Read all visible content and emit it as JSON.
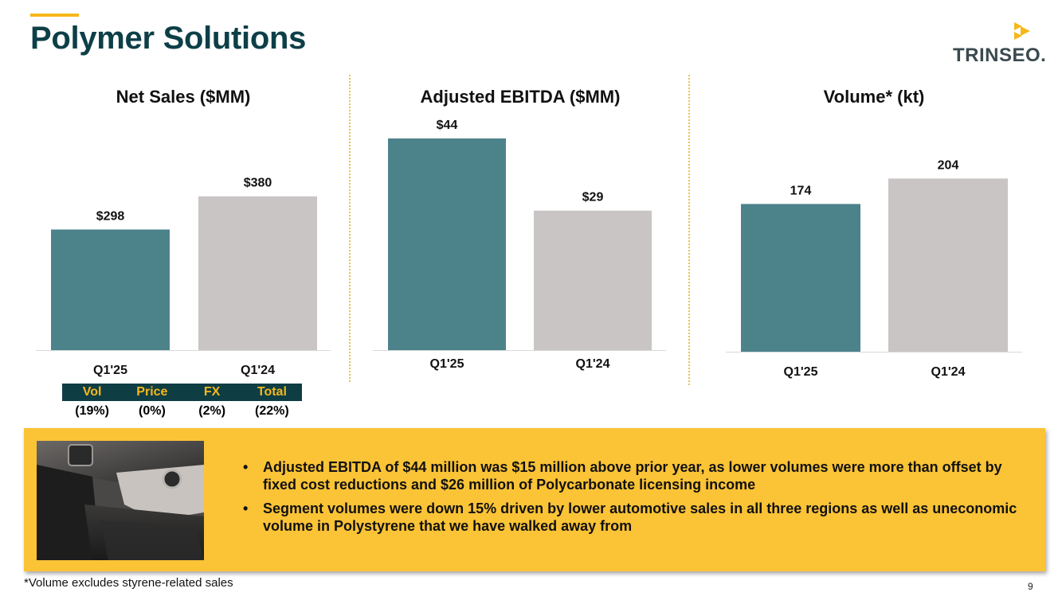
{
  "title": "Polymer Solutions",
  "logo": {
    "text": "TRINSEO."
  },
  "colors": {
    "teal": "#4c838b",
    "grey": "#c9c5c4",
    "gold": "#f5b819",
    "navy": "#0d3f47",
    "banner": "#fbc336"
  },
  "chart_data": [
    {
      "type": "bar",
      "title": "Net Sales ($MM)",
      "categories": [
        "Q1'25",
        "Q1'24"
      ],
      "values": [
        298,
        380
      ],
      "value_labels": [
        "$298",
        "$380"
      ],
      "ylim": [
        0,
        525
      ],
      "bar_colors": [
        "#4c838b",
        "#c9c5c4"
      ],
      "grid": false
    },
    {
      "type": "bar",
      "title": "Adjusted EBITDA ($MM)",
      "categories": [
        "Q1'25",
        "Q1'24"
      ],
      "values": [
        44,
        29
      ],
      "value_labels": [
        "$44",
        "$29"
      ],
      "ylim": [
        0,
        44
      ],
      "bar_colors": [
        "#4c838b",
        "#c9c5c4"
      ],
      "grid": false
    },
    {
      "type": "bar",
      "title": "Volume* (kt)",
      "categories": [
        "Q1'25",
        "Q1'24"
      ],
      "values": [
        174,
        204
      ],
      "value_labels": [
        "174",
        "204"
      ],
      "ylim": [
        0,
        224
      ],
      "bar_colors": [
        "#4c838b",
        "#c9c5c4"
      ],
      "grid": false
    }
  ],
  "price_bridge": {
    "headers": [
      "Vol",
      "Price",
      "FX",
      "Total"
    ],
    "values": [
      "(19%)",
      "(0%)",
      "(2%)",
      "(22%)"
    ]
  },
  "bullets": [
    "Adjusted EBITDA of $44 million was $15 million above prior year, as lower volumes were more than offset by fixed cost reductions and $26 million of Polycarbonate licensing income",
    "Segment volumes were down 15% driven by lower automotive sales in all three regions as well as uneconomic volume in Polystyrene that we have walked away from"
  ],
  "bullet_char": "•",
  "footnote": "*Volume excludes styrene-related sales",
  "page_number": "9"
}
